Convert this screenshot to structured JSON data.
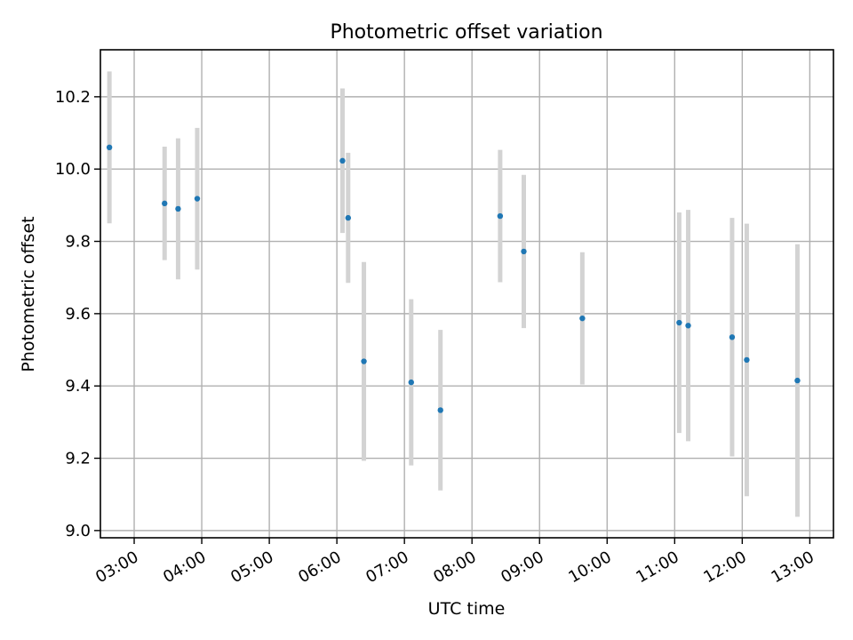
{
  "chart_data": {
    "type": "scatter",
    "title": "Photometric offset variation",
    "xlabel": "UTC time",
    "ylabel": "Photometric offset",
    "x_axis_type": "time",
    "xlim": [
      "02:30",
      "13:21"
    ],
    "ylim": [
      8.98,
      10.33
    ],
    "x_ticks": [
      "03:00",
      "04:00",
      "05:00",
      "06:00",
      "07:00",
      "08:00",
      "09:00",
      "10:00",
      "11:00",
      "12:00",
      "13:00"
    ],
    "y_ticks": [
      "9.0",
      "9.2",
      "9.4",
      "9.6",
      "9.8",
      "10.0",
      "10.2"
    ],
    "grid": true,
    "marker_color": "#1f77b4",
    "errorbar_color": "#d3d3d3",
    "points": [
      {
        "time": "02:38",
        "y": 10.06,
        "err": 0.21
      },
      {
        "time": "03:27",
        "y": 9.905,
        "err": 0.157
      },
      {
        "time": "03:39",
        "y": 9.89,
        "err": 0.195
      },
      {
        "time": "03:56",
        "y": 9.918,
        "err": 0.196
      },
      {
        "time": "06:05",
        "y": 10.023,
        "err": 0.2
      },
      {
        "time": "06:10",
        "y": 9.865,
        "err": 0.18
      },
      {
        "time": "06:24",
        "y": 9.468,
        "err": 0.275
      },
      {
        "time": "07:06",
        "y": 9.41,
        "err": 0.23
      },
      {
        "time": "07:32",
        "y": 9.333,
        "err": 0.222
      },
      {
        "time": "08:25",
        "y": 9.87,
        "err": 0.183
      },
      {
        "time": "08:46",
        "y": 9.772,
        "err": 0.212
      },
      {
        "time": "09:38",
        "y": 9.587,
        "err": 0.183
      },
      {
        "time": "11:04",
        "y": 9.575,
        "err": 0.305
      },
      {
        "time": "11:12",
        "y": 9.567,
        "err": 0.32
      },
      {
        "time": "11:51",
        "y": 9.535,
        "err": 0.33
      },
      {
        "time": "12:04",
        "y": 9.472,
        "err": 0.377
      },
      {
        "time": "12:49",
        "y": 9.415,
        "err": 0.377
      }
    ]
  }
}
